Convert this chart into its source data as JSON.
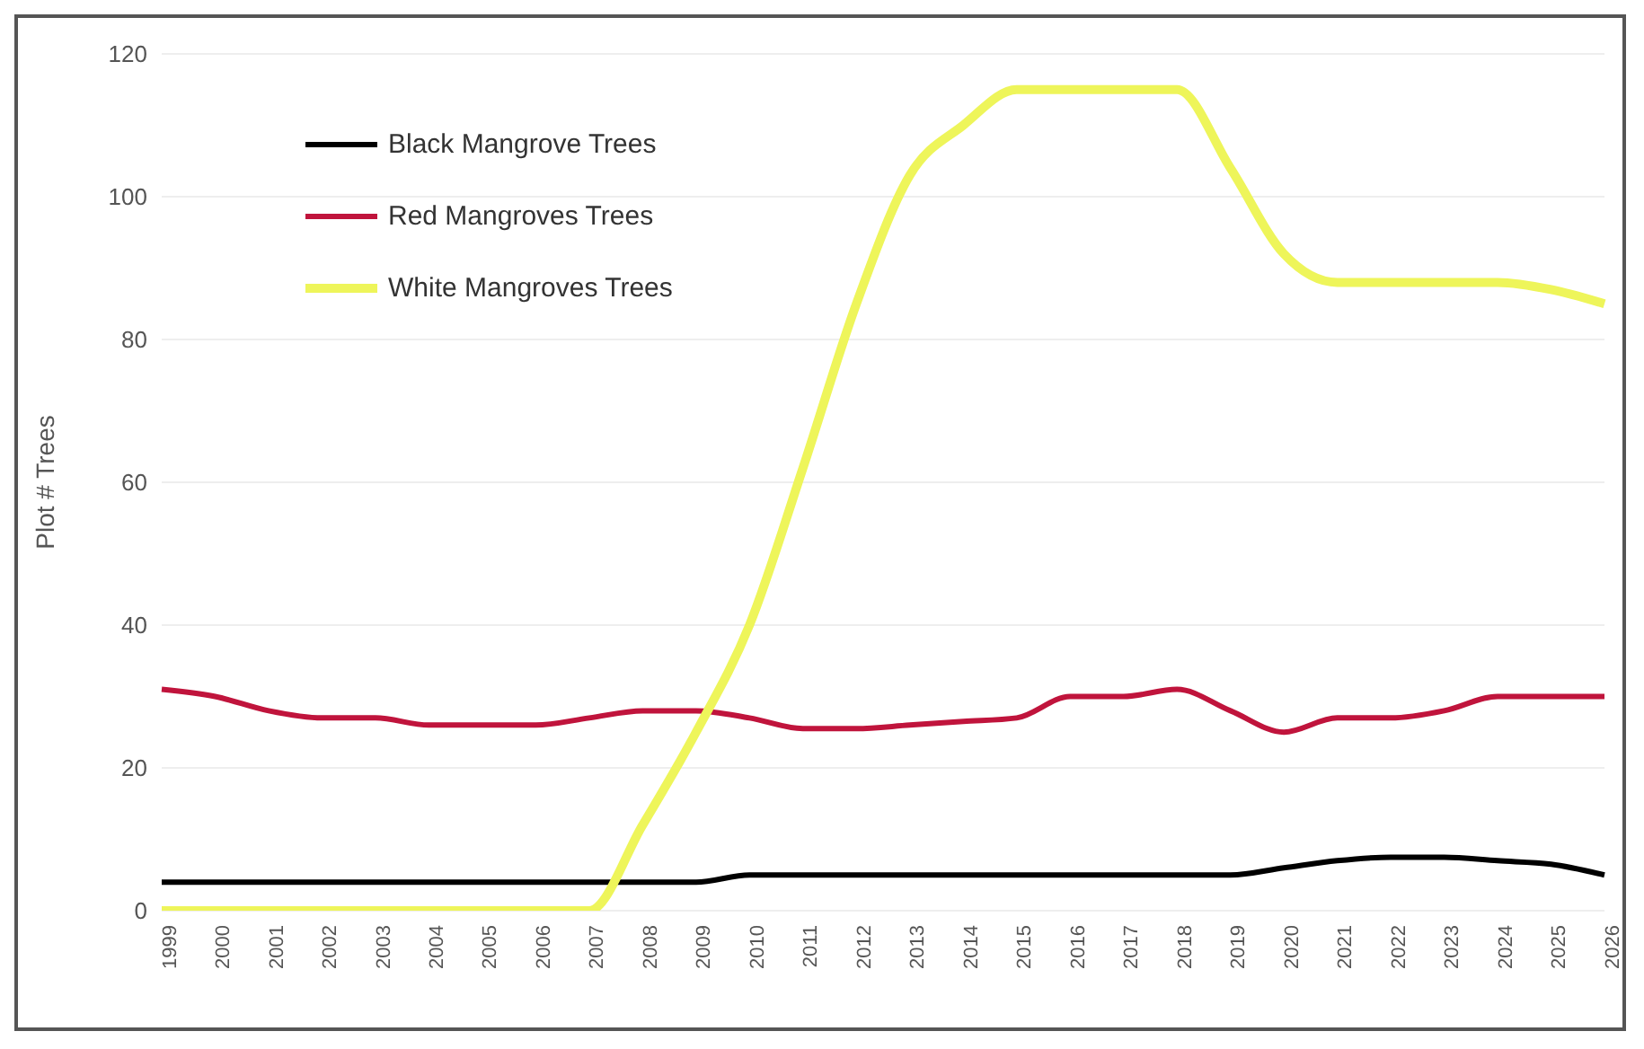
{
  "chart_data": {
    "type": "line",
    "ylabel": "Plot # Trees",
    "categories": [
      "1999",
      "2000",
      "2001",
      "2002",
      "2003",
      "2004",
      "2005",
      "2006",
      "2007",
      "2008",
      "2009",
      "2010",
      "2011",
      "2012",
      "2013",
      "2014",
      "2015",
      "2016",
      "2017",
      "2018",
      "2019",
      "2020",
      "2021",
      "2022",
      "2023",
      "2024",
      "2025",
      "2026"
    ],
    "series": [
      {
        "name": "Black Mangrove Trees",
        "color": "#000000",
        "values": [
          4,
          4,
          4,
          4,
          4,
          4,
          4,
          4,
          4,
          4,
          4,
          5,
          5,
          5,
          5,
          5,
          5,
          5,
          5,
          5,
          5,
          6,
          7,
          7.5,
          7.5,
          7,
          6.5,
          5
        ]
      },
      {
        "name": "Red Mangroves Trees",
        "color": "#c0143c",
        "values": [
          31,
          30,
          28,
          27,
          27,
          26,
          26,
          26,
          27,
          28,
          28,
          27,
          25.5,
          25.5,
          26,
          26.5,
          27,
          30,
          30,
          31,
          28,
          25,
          27,
          27,
          28,
          30,
          30,
          30
        ]
      },
      {
        "name": "White Mangroves Trees",
        "color": "#eef55a",
        "values": [
          0,
          0,
          0,
          0,
          0,
          0,
          0,
          0,
          0,
          12,
          25,
          40,
          62,
          85,
          103,
          110,
          115,
          115,
          115,
          115,
          104,
          92,
          88,
          88,
          88,
          88,
          87,
          85
        ]
      }
    ],
    "ylim": [
      0,
      120
    ],
    "yticks": [
      0,
      20,
      40,
      60,
      80,
      100,
      120
    ],
    "grid": "y",
    "legend": "top left",
    "marker": "none",
    "line_style": "solid"
  }
}
